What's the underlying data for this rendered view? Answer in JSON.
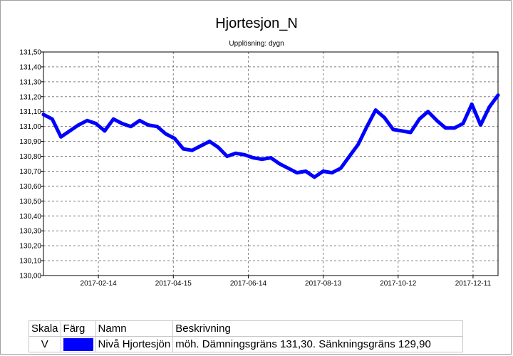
{
  "chart_data": {
    "type": "line",
    "title": "Hjortesjon_N",
    "subtitle": "Upplösning: dygn",
    "xlabel": "",
    "ylabel": "",
    "x_ticks": [
      "2017-02-14",
      "2017-04-15",
      "2017-06-14",
      "2017-08-13",
      "2017-10-12",
      "2017-12-11"
    ],
    "y_ticks": [
      "130,00",
      "130,10",
      "130,20",
      "130,30",
      "130,40",
      "130,50",
      "130,60",
      "130,70",
      "130,80",
      "130,90",
      "131,00",
      "131,10",
      "131,20",
      "131,30",
      "131,40",
      "131,50"
    ],
    "ylim": [
      130.0,
      131.5
    ],
    "xlim": [
      "2017-01-01",
      "2017-12-31"
    ],
    "grid": true,
    "series": [
      {
        "name": "Nivå Hjortesjön",
        "color": "#0000ff",
        "x": [
          "2017-01-01",
          "2017-01-08",
          "2017-01-15",
          "2017-01-22",
          "2017-01-29",
          "2017-02-05",
          "2017-02-12",
          "2017-02-19",
          "2017-02-26",
          "2017-03-05",
          "2017-03-12",
          "2017-03-19",
          "2017-03-26",
          "2017-04-02",
          "2017-04-09",
          "2017-04-16",
          "2017-04-23",
          "2017-04-30",
          "2017-05-07",
          "2017-05-14",
          "2017-05-21",
          "2017-05-28",
          "2017-06-04",
          "2017-06-11",
          "2017-06-18",
          "2017-06-25",
          "2017-07-02",
          "2017-07-09",
          "2017-07-16",
          "2017-07-23",
          "2017-07-30",
          "2017-08-06",
          "2017-08-13",
          "2017-08-20",
          "2017-08-27",
          "2017-09-03",
          "2017-09-10",
          "2017-09-17",
          "2017-09-24",
          "2017-10-01",
          "2017-10-08",
          "2017-10-15",
          "2017-10-22",
          "2017-10-29",
          "2017-11-05",
          "2017-11-12",
          "2017-11-19",
          "2017-11-26",
          "2017-12-03",
          "2017-12-10",
          "2017-12-17",
          "2017-12-24",
          "2017-12-31"
        ],
        "values": [
          131.08,
          131.05,
          130.93,
          130.97,
          131.01,
          131.04,
          131.02,
          130.97,
          131.05,
          131.02,
          131.0,
          131.04,
          131.01,
          131.0,
          130.95,
          130.92,
          130.85,
          130.84,
          130.87,
          130.9,
          130.86,
          130.8,
          130.82,
          130.81,
          130.79,
          130.78,
          130.79,
          130.75,
          130.72,
          130.69,
          130.7,
          130.66,
          130.7,
          130.69,
          130.72,
          130.8,
          130.88,
          131.0,
          131.11,
          131.06,
          130.98,
          130.97,
          130.96,
          131.05,
          131.1,
          131.04,
          130.99,
          130.99,
          131.02,
          131.15,
          131.01,
          131.13,
          131.21
        ]
      }
    ]
  },
  "legend_table": {
    "headers": [
      "Skala",
      "Färg",
      "Namn",
      "Beskrivning"
    ],
    "rows": [
      {
        "skala": "V",
        "color": "#0000ff",
        "namn": "Nivå Hjortesjön",
        "beskrivning": "möh.  Dämningsgräns 131,30. Sänkningsgräns 129,90"
      }
    ]
  }
}
